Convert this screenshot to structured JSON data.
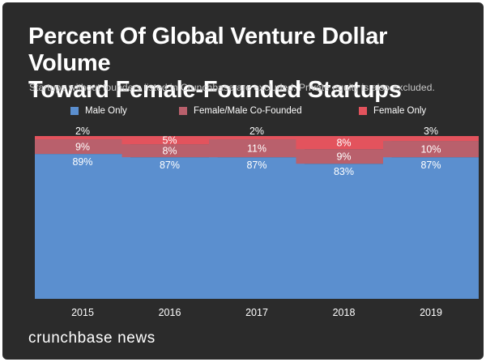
{
  "header": {
    "title_line1": "Percent Of Global Venture Dollar Volume",
    "title_line2": "Toward Female-Founded Startups",
    "subtitle": "Startups without founders listed in Crunchbase are excluded. Private equity is also excluded."
  },
  "legend": [
    {
      "label": "Male Only",
      "color": "#5b8fcf"
    },
    {
      "label": "Female/Male Co-Founded",
      "color": "#b9606c"
    },
    {
      "label": "Female Only",
      "color": "#e3535d"
    }
  ],
  "footer": {
    "brand": "crunchbase news"
  },
  "chart_data": {
    "type": "bar",
    "stacked": true,
    "percent_stacked": true,
    "categories": [
      "2015",
      "2016",
      "2017",
      "2018",
      "2019"
    ],
    "series": [
      {
        "name": "Male Only",
        "values": [
          89,
          87,
          87,
          83,
          87
        ],
        "color": "#5b8fcf"
      },
      {
        "name": "Female/Male Co-Founded",
        "values": [
          9,
          8,
          11,
          9,
          10
        ],
        "color": "#b9606c"
      },
      {
        "name": "Female Only",
        "values": [
          2,
          5,
          2,
          8,
          3
        ],
        "color": "#e3535d"
      }
    ],
    "title": "Percent Of Global Venture Dollar Volume Toward Female-Founded Startups",
    "ylim": [
      0,
      100
    ],
    "grid": false,
    "legend_position": "top"
  }
}
